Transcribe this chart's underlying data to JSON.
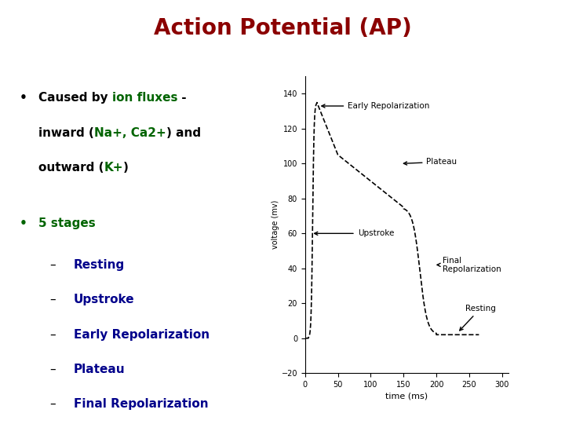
{
  "title": "Action Potential (AP)",
  "title_color": "#8B0000",
  "title_fontsize": 20,
  "title_fontweight": "bold",
  "bg_color": "#FFFFFF",
  "bullet1_line1": [
    [
      "Caused by ",
      "#000000"
    ],
    [
      "ion fluxes",
      "#006400"
    ],
    [
      " -",
      "#000000"
    ]
  ],
  "bullet1_line2": [
    [
      "inward (",
      "#000000"
    ],
    [
      "Na+, Ca2+",
      "#006400"
    ],
    [
      ") and",
      "#000000"
    ]
  ],
  "bullet1_line3": [
    [
      "outward (",
      "#000000"
    ],
    [
      "K+",
      "#006400"
    ],
    [
      ")",
      "#000000"
    ]
  ],
  "bullet2": "5 stages",
  "bullet2_color": "#006400",
  "subitems": [
    "Resting",
    "Upstroke",
    "Early Repolarization",
    "Plateau",
    "Final Repolarization"
  ],
  "subitems_color": "#00008B",
  "ylabel": "voltage (mv)",
  "xlabel": "time (ms)",
  "ylim": [
    -20,
    150
  ],
  "xlim": [
    0,
    310
  ],
  "yticks": [
    -20,
    0,
    20,
    40,
    60,
    80,
    100,
    120,
    140
  ],
  "xticks": [
    0,
    50,
    100,
    150,
    200,
    250,
    300
  ],
  "line_color": "#000000",
  "line_style": "--",
  "line_width": 1.2,
  "annot_fontsize": 7.5,
  "text_fontsize": 11
}
